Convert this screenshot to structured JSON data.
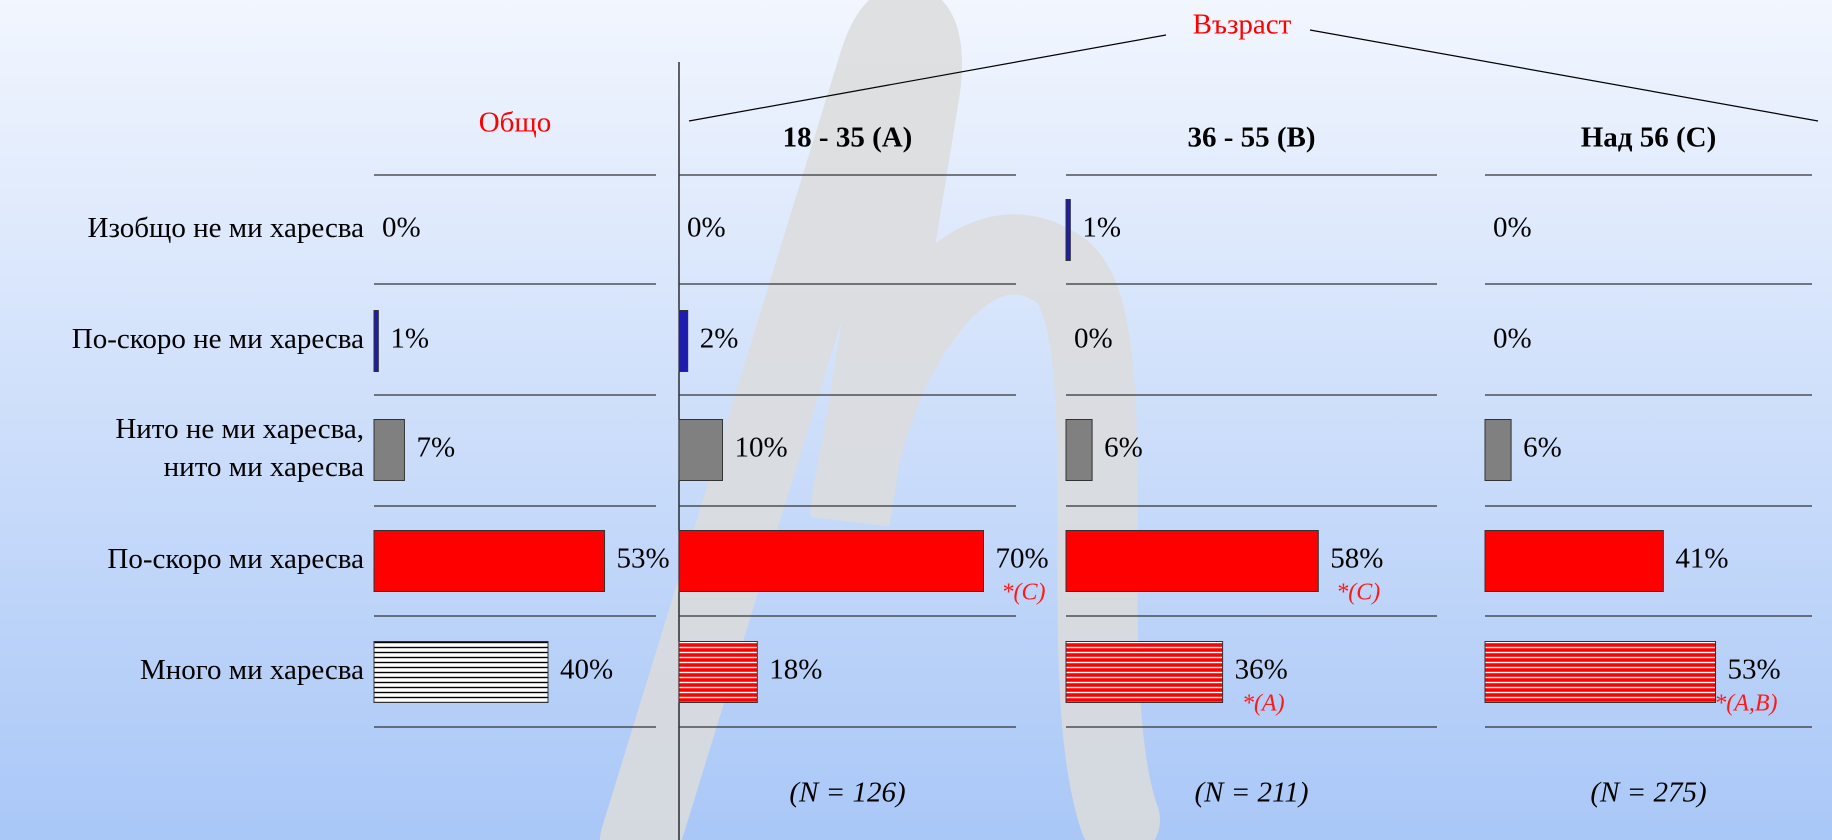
{
  "chart_data": {
    "type": "bar",
    "orientation": "horizontal",
    "group_title": "Възраст",
    "categories": [
      "Изобщо не ми харесва",
      "По-скоро не ми харесва",
      "Нито не ми харесва,\nнито ми харесва",
      "По-скоро ми харесва",
      "Много ми харесва"
    ],
    "patterns": [
      "solid",
      "solid",
      "solid",
      "solid",
      "hatched"
    ],
    "xlim": [
      0,
      100
    ],
    "series": [
      {
        "name": "Общо",
        "colors": [
          "#1c1cb0",
          "#1c1cb0",
          "#808080",
          "#ff0000",
          "#ffffff"
        ],
        "hatch_color": "#000000",
        "values": [
          0,
          1,
          7,
          53,
          40
        ],
        "value_labels": [
          "0%",
          "1%",
          "7%",
          "53%",
          "40%"
        ]
      },
      {
        "name": "18 - 35 (A)",
        "colors": [
          "#1c1cb0",
          "#1c1cb0",
          "#808080",
          "#ff0000",
          "#ff0000"
        ],
        "hatch_color": "#ffffff",
        "values": [
          0,
          2,
          10,
          70,
          18
        ],
        "value_labels": [
          "0%",
          "2%",
          "10%",
          "70%",
          "18%"
        ],
        "annotations": [
          null,
          null,
          null,
          "*(C)",
          null
        ],
        "note": "(N = 126)"
      },
      {
        "name": "36 - 55 (B)",
        "colors": [
          "#1c1cb0",
          "#1c1cb0",
          "#808080",
          "#ff0000",
          "#ff0000"
        ],
        "hatch_color": "#ffffff",
        "values": [
          1,
          0,
          6,
          58,
          36
        ],
        "value_labels": [
          "1%",
          "0%",
          "6%",
          "58%",
          "36%"
        ],
        "annotations": [
          null,
          null,
          null,
          "*(C)",
          "*(A)"
        ],
        "note": "(N = 211)"
      },
      {
        "name": "Над 56 (C)",
        "colors": [
          "#1c1cb0",
          "#1c1cb0",
          "#808080",
          "#ff0000",
          "#ff0000"
        ],
        "hatch_color": "#ffffff",
        "values": [
          0,
          0,
          6,
          41,
          53
        ],
        "value_labels": [
          "0%",
          "0%",
          "6%",
          "41%",
          "53%"
        ],
        "annotations": [
          null,
          null,
          null,
          null,
          "*(A,B)"
        ],
        "note": "(N = 275)"
      }
    ]
  }
}
